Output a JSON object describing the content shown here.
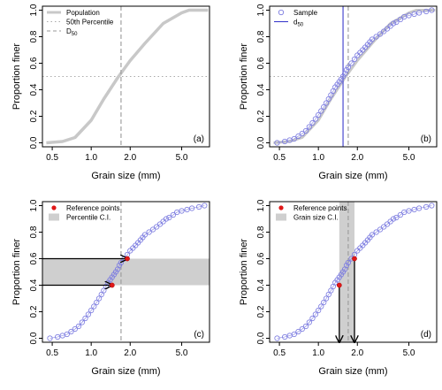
{
  "chart_data": [
    {
      "panel_label": "(a)",
      "type": "line",
      "xlabel": "Grain size (mm)",
      "ylabel": "Proportion finer",
      "xscale": "log",
      "xlim": [
        0.42,
        8.2
      ],
      "ylim": [
        -0.03,
        1.03
      ],
      "x_ticks": [
        "0.5",
        "1.0",
        "2.0",
        "5.0"
      ],
      "y_ticks": [
        "0.0",
        "0.2",
        "0.4",
        "0.6",
        "0.8",
        "1.0"
      ],
      "legend": {
        "placement": "top-left",
        "entries": [
          {
            "label": "Population",
            "style": "thick-gray-line"
          },
          {
            "label": "50th Percentile",
            "style": "dotted-gray-line"
          },
          {
            "label": "D50",
            "label_main": "D",
            "label_sub": "50",
            "style": "dashed-gray-line"
          }
        ]
      },
      "series": [
        {
          "name": "Population",
          "x": [
            0.45,
            0.6,
            0.75,
            1.0,
            1.25,
            1.6,
            2.0,
            2.6,
            3.6,
            5.0,
            5.7,
            8.0
          ],
          "y": [
            0.0,
            0.01,
            0.04,
            0.17,
            0.33,
            0.49,
            0.62,
            0.75,
            0.9,
            0.98,
            1.0,
            1.0
          ]
        }
      ],
      "hlines": [
        {
          "y": 0.5,
          "style": "dotted"
        }
      ],
      "vlines": [
        {
          "x": 1.7,
          "style": "dashed"
        }
      ]
    },
    {
      "panel_label": "(b)",
      "type": "scatter",
      "xlabel": "Grain size (mm)",
      "ylabel": "Proportion finer",
      "xscale": "log",
      "xlim": [
        0.42,
        8.2
      ],
      "ylim": [
        -0.03,
        1.03
      ],
      "x_ticks": [
        "0.5",
        "1.0",
        "2.0",
        "5.0"
      ],
      "y_ticks": [
        "0.0",
        "0.2",
        "0.4",
        "0.6",
        "0.8",
        "1.0"
      ],
      "legend": {
        "placement": "top-left",
        "entries": [
          {
            "label": "Sample",
            "style": "blue-circle"
          },
          {
            "label": "d50",
            "label_main": "d",
            "label_sub": "50",
            "style": "blue-line"
          }
        ]
      },
      "series": [
        {
          "name": "Sample",
          "x": [
            0.48,
            0.55,
            0.6,
            0.65,
            0.7,
            0.75,
            0.8,
            0.85,
            0.9,
            0.95,
            1.0,
            1.05,
            1.1,
            1.15,
            1.2,
            1.25,
            1.3,
            1.35,
            1.4,
            1.45,
            1.5,
            1.55,
            1.6,
            1.65,
            1.7,
            1.8,
            1.9,
            2.0,
            2.1,
            2.2,
            2.3,
            2.4,
            2.5,
            2.6,
            2.8,
            3.0,
            3.2,
            3.4,
            3.6,
            3.8,
            4.0,
            4.3,
            4.6,
            5.0,
            5.5,
            6.0,
            6.8,
            7.5
          ],
          "y": [
            0.0,
            0.01,
            0.02,
            0.03,
            0.05,
            0.07,
            0.09,
            0.12,
            0.15,
            0.18,
            0.21,
            0.24,
            0.27,
            0.3,
            0.33,
            0.36,
            0.39,
            0.42,
            0.44,
            0.46,
            0.48,
            0.5,
            0.52,
            0.55,
            0.57,
            0.6,
            0.63,
            0.66,
            0.68,
            0.7,
            0.72,
            0.74,
            0.76,
            0.78,
            0.8,
            0.82,
            0.84,
            0.86,
            0.88,
            0.9,
            0.91,
            0.93,
            0.95,
            0.96,
            0.97,
            0.98,
            0.99,
            1.0
          ]
        },
        {
          "name": "Population",
          "x": [
            0.45,
            0.6,
            0.75,
            1.0,
            1.25,
            1.6,
            2.0,
            2.6,
            3.6,
            5.0,
            5.7,
            8.0
          ],
          "y": [
            0.0,
            0.01,
            0.04,
            0.17,
            0.33,
            0.49,
            0.62,
            0.75,
            0.9,
            0.98,
            1.0,
            1.0
          ]
        }
      ],
      "hlines": [
        {
          "y": 0.5,
          "style": "dotted"
        }
      ],
      "vlines": [
        {
          "x": 1.55,
          "style": "solid-blue"
        },
        {
          "x": 1.7,
          "style": "dashed"
        }
      ]
    },
    {
      "panel_label": "(c)",
      "type": "scatter",
      "xlabel": "Grain size (mm)",
      "ylabel": "Proportion finer",
      "xscale": "log",
      "xlim": [
        0.42,
        8.2
      ],
      "ylim": [
        -0.03,
        1.03
      ],
      "x_ticks": [
        "0.5",
        "1.0",
        "2.0",
        "5.0"
      ],
      "y_ticks": [
        "0.0",
        "0.2",
        "0.4",
        "0.6",
        "0.8",
        "1.0"
      ],
      "legend": {
        "placement": "top-left",
        "entries": [
          {
            "label": "Reference points",
            "style": "red-dot"
          },
          {
            "label": "Percentile C.I.",
            "style": "gray-box"
          }
        ]
      },
      "shaded_band": {
        "orientation": "horizontal",
        "from": 0.4,
        "to": 0.6
      },
      "reference_points": [
        {
          "x": 1.45,
          "y": 0.4
        },
        {
          "x": 1.9,
          "y": 0.6
        }
      ],
      "arrows": [
        {
          "from": [
            0.42,
            0.6
          ],
          "to": [
            1.9,
            0.6
          ]
        },
        {
          "from": [
            0.42,
            0.4
          ],
          "to": [
            1.45,
            0.4
          ]
        }
      ],
      "vlines": [
        {
          "x": 1.7,
          "style": "dashed"
        }
      ]
    },
    {
      "panel_label": "(d)",
      "type": "scatter",
      "xlabel": "Grain size (mm)",
      "ylabel": "Proportion finer",
      "xscale": "log",
      "xlim": [
        0.42,
        8.2
      ],
      "ylim": [
        -0.03,
        1.03
      ],
      "x_ticks": [
        "0.5",
        "1.0",
        "2.0",
        "5.0"
      ],
      "y_ticks": [
        "0.0",
        "0.2",
        "0.4",
        "0.6",
        "0.8",
        "1.0"
      ],
      "legend": {
        "placement": "top-left",
        "entries": [
          {
            "label": "Reference points",
            "style": "red-dot"
          },
          {
            "label": "Grain size C.I.",
            "style": "gray-box"
          }
        ]
      },
      "shaded_band": {
        "orientation": "vertical",
        "from": 1.45,
        "to": 1.9
      },
      "reference_points": [
        {
          "x": 1.45,
          "y": 0.4
        },
        {
          "x": 1.9,
          "y": 0.6
        }
      ],
      "arrows": [
        {
          "from": [
            1.45,
            0.4
          ],
          "to": [
            1.45,
            -0.03
          ]
        },
        {
          "from": [
            1.9,
            0.6
          ],
          "to": [
            1.9,
            -0.03
          ]
        }
      ],
      "vlines": [
        {
          "x": 1.7,
          "style": "dashed"
        }
      ]
    }
  ]
}
